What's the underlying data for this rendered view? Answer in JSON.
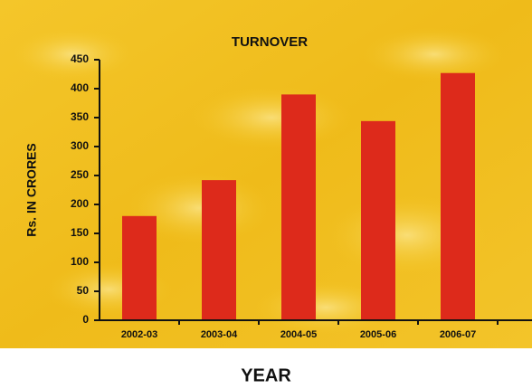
{
  "chart_data": {
    "type": "bar",
    "title": "TURNOVER",
    "y_label": "Rs. IN CRORES",
    "x_label": "YEAR",
    "categories": [
      "2002-03",
      "2003-04",
      "2004-05",
      "2005-06",
      "2006-07"
    ],
    "values": [
      180,
      242,
      390,
      344,
      427
    ],
    "color": "#dd2a1b",
    "ylim": [
      0,
      450
    ],
    "yticks": [
      0,
      50,
      100,
      150,
      200,
      250,
      300,
      350,
      400,
      450
    ],
    "grid": false
  }
}
